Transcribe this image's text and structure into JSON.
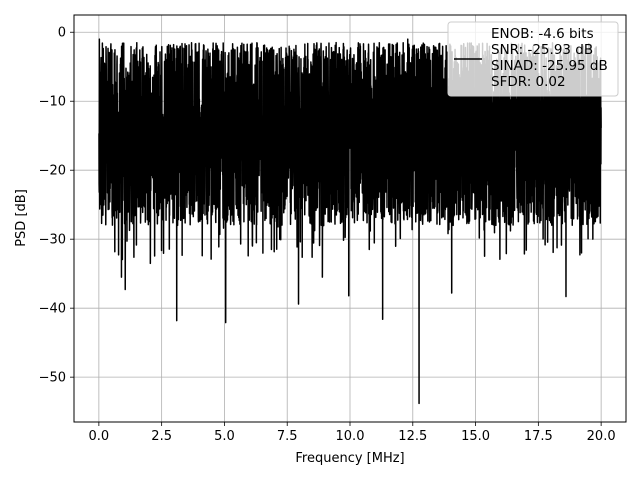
{
  "chart_data": {
    "type": "line",
    "title": "",
    "xlabel": "Frequency [MHz]",
    "ylabel": "PSD [dB]",
    "xlim": [
      -0.99,
      20.99
    ],
    "ylim": [
      -56.5,
      2.5
    ],
    "xticks": [
      0.0,
      2.5,
      5.0,
      7.5,
      10.0,
      12.5,
      15.0,
      17.5,
      20.0
    ],
    "xtick_labels": [
      "0.0",
      "2.5",
      "5.0",
      "7.5",
      "10.0",
      "12.5",
      "15.0",
      "17.5",
      "20.0"
    ],
    "yticks": [
      0,
      -10,
      -20,
      -30,
      -40,
      -50
    ],
    "ytick_labels": [
      "0",
      "−10",
      "−20",
      "−30",
      "−40",
      "−50"
    ],
    "grid": true,
    "legend_position": "top-right",
    "line_color": "#000000",
    "series": [
      {
        "x_range": [
          0.0,
          20.0
        ],
        "density": "dense noise spectrum",
        "typical_band": [
          -28,
          -3
        ],
        "notable_points": [
          {
            "x": 0.02,
            "y": -1.0
          },
          {
            "x": 0.9,
            "y": -35.5
          },
          {
            "x": 1.05,
            "y": -37.3
          },
          {
            "x": 2.05,
            "y": -33.5
          },
          {
            "x": 3.1,
            "y": -41.8
          },
          {
            "x": 5.05,
            "y": -42.1
          },
          {
            "x": 7.95,
            "y": -39.4
          },
          {
            "x": 8.9,
            "y": -35.5
          },
          {
            "x": 9.95,
            "y": -38.2
          },
          {
            "x": 11.3,
            "y": -41.6
          },
          {
            "x": 12.3,
            "y": -1.0
          },
          {
            "x": 12.75,
            "y": -53.8
          },
          {
            "x": 14.05,
            "y": -37.8
          },
          {
            "x": 18.6,
            "y": -38.3
          },
          {
            "x": 19.35,
            "y": -3.5
          }
        ]
      }
    ],
    "legend": {
      "lines": [
        "ENOB: -4.6 bits",
        "SNR: -25.93 dB",
        "SINAD: -25.95 dB",
        "SFDR: 0.02"
      ]
    }
  }
}
